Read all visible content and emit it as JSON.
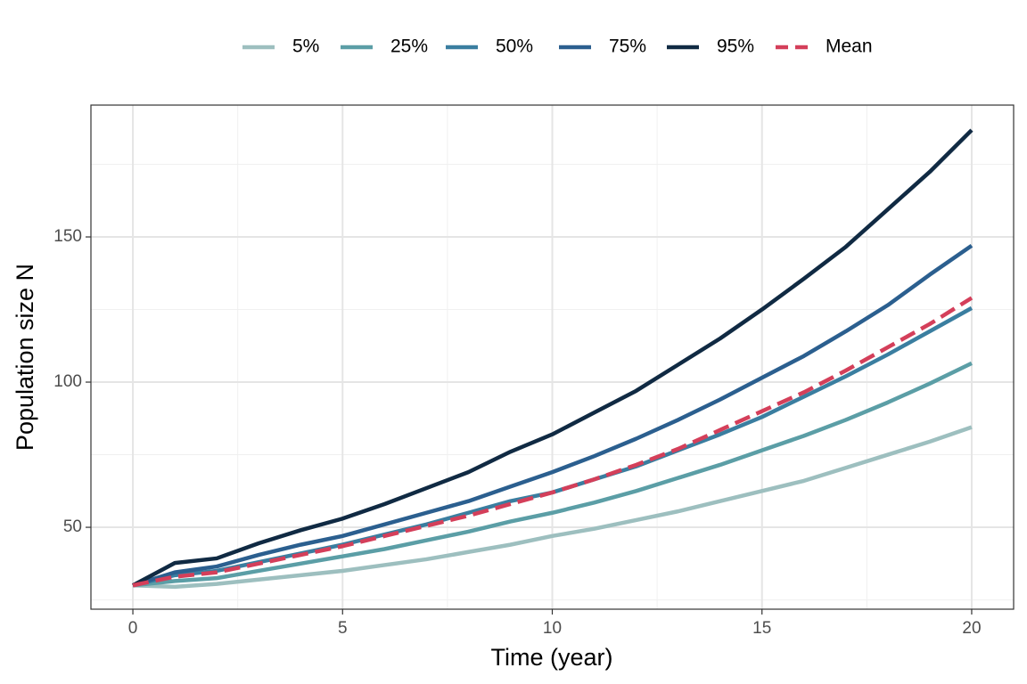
{
  "chart_data": {
    "type": "line",
    "x_label": "Time (year)",
    "y_label": "Population size N",
    "x": [
      0,
      1,
      2,
      3,
      4,
      5,
      6,
      7,
      8,
      9,
      10,
      11,
      12,
      13,
      14,
      15,
      16,
      17,
      18,
      19,
      20
    ],
    "xlim": [
      -1,
      21
    ],
    "xticks": [
      0,
      5,
      10,
      15,
      20
    ],
    "ylim": [
      21.8,
      195.4
    ],
    "yticks": [
      50,
      100,
      150
    ],
    "grid": true,
    "legend": "top",
    "series": [
      {
        "name": "5%",
        "color": "#9dbfbf",
        "dash": false,
        "values": [
          30,
          29.5,
          30.5,
          32,
          33.5,
          35,
          37,
          39,
          41.5,
          44,
          47,
          49.5,
          52.5,
          55.5,
          59,
          62.5,
          66,
          70.5,
          75,
          79.5,
          84.5
        ]
      },
      {
        "name": "25%",
        "color": "#5b9ea6",
        "dash": false,
        "values": [
          30,
          31.5,
          32.5,
          35,
          37.5,
          40,
          42.5,
          45.5,
          48.5,
          52,
          55,
          58.5,
          62.5,
          67,
          71.5,
          76.5,
          81.5,
          87,
          93,
          99.5,
          106.5
        ]
      },
      {
        "name": "50%",
        "color": "#3a7ea0",
        "dash": false,
        "values": [
          30,
          33.5,
          35,
          38,
          41,
          44,
          47.5,
          51,
          55,
          59,
          62,
          66.5,
          71,
          76.5,
          82,
          88,
          95,
          102,
          109.5,
          117.5,
          125.5
        ]
      },
      {
        "name": "75%",
        "color": "#2b5f8f",
        "dash": false,
        "values": [
          30,
          34.5,
          36.5,
          40.5,
          44,
          47,
          51,
          55,
          59,
          64,
          69,
          74.5,
          80.5,
          87,
          94,
          101.5,
          109,
          117.5,
          126.5,
          137,
          147
        ]
      },
      {
        "name": "95%",
        "color": "#102a43",
        "dash": false,
        "values": [
          30,
          37.7,
          39.3,
          44.5,
          49,
          53,
          58,
          63.5,
          69,
          76,
          82,
          89.5,
          97,
          106,
          115,
          125,
          135.6,
          146.6,
          159.5,
          172.4,
          186.8
        ]
      },
      {
        "name": "Mean",
        "color": "#d43f5a",
        "dash": true,
        "values": [
          30,
          33,
          34.5,
          37.5,
          40.5,
          43.5,
          47,
          50.5,
          54,
          58,
          62,
          66.5,
          71.5,
          77,
          83.5,
          90,
          96.5,
          104,
          112,
          120,
          129
        ]
      }
    ]
  }
}
